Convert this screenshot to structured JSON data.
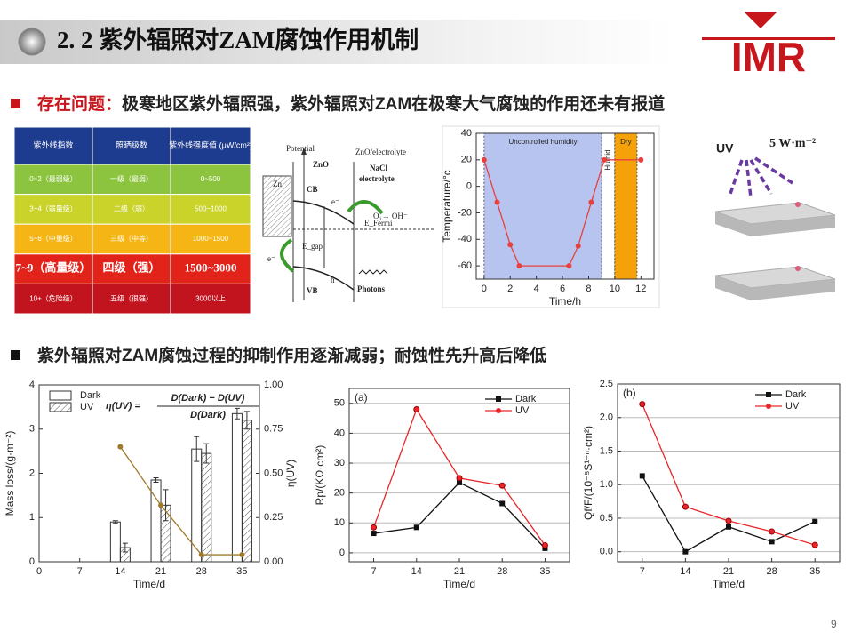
{
  "header": {
    "title": "2. 2 紫外辐照对ZAM腐蚀作用机制",
    "logo": "IMR",
    "page_number": "9"
  },
  "bullets": [
    {
      "label": "存在问题：",
      "text": "极寒地区紫外辐照强，紫外辐照对ZAM在极寒大气腐蚀的作用还未有报道"
    },
    {
      "text": "紫外辐照对ZAM腐蚀过程的抑制作用逐渐减弱；耐蚀性先升高后降低"
    }
  ],
  "table": {
    "header": [
      "紫外线指数",
      "照晒级数",
      "紫外线强度值 (μW/cm²)"
    ],
    "rows": [
      [
        "0~2（最弱级）",
        "一级（最弱）",
        "0~500"
      ],
      [
        "3~4（弱量级）",
        "二级（弱）",
        "500~1000"
      ],
      [
        "5~6（中量级）",
        "三级（中等）",
        "1000~1500"
      ],
      [
        "7~9（高量级）",
        "四级（强）",
        "1500~3000"
      ],
      [
        "10+（危险级）",
        "五级（很强）",
        "3000以上"
      ]
    ],
    "header_color": "#1e3c8f",
    "row_colors": [
      "#8cc43f",
      "#c9d32a",
      "#f5b615",
      "#e2231a",
      "#c1141e"
    ],
    "highlight_row": 3
  },
  "diagram": {
    "potential": "Potential",
    "zno": "ZnO",
    "interface": "ZnO/electrolyte",
    "electrolyte_1": "NaCl",
    "electrolyte_2": "electrolyte",
    "zn": "Zn",
    "cb": "CB",
    "vb": "VB",
    "e1": "e⁻",
    "e2": "e⁻",
    "hole": "h",
    "reaction": "O₂→ OH⁻",
    "fermi": "E_Fermi",
    "gap": "E_gap",
    "photons": "Photons"
  },
  "uv": {
    "label": "UV",
    "intensity": "5 W·m⁻²"
  },
  "chart_data": [
    {
      "type": "line",
      "x": [
        0,
        1,
        2,
        2.7,
        6.5,
        7.2,
        8.2,
        9.2,
        12
      ],
      "values": [
        20,
        -12,
        -44,
        -60,
        -60,
        -45,
        -12,
        20,
        20
      ],
      "color": "#e8403e",
      "xlim": [
        -0.6,
        13
      ],
      "ylim": [
        -70,
        40
      ],
      "xticks": [
        0,
        2,
        4,
        6,
        8,
        10,
        12
      ],
      "yticks": [
        -60,
        -40,
        -20,
        0,
        20,
        40
      ],
      "xlabel": "Time/h",
      "ylabel": "Temperature/°c",
      "grid": false,
      "regions": [
        {
          "label": "Uncontrolled humidity",
          "from": 0,
          "to": 9,
          "color": "#b7c4ef"
        },
        {
          "label": "Humid",
          "from": 9,
          "to": 10,
          "color": "#ffffff"
        },
        {
          "label": "Dry",
          "from": 10,
          "to": 11.7,
          "color": "#f5a20a"
        }
      ]
    },
    {
      "type": "bar",
      "x": [
        14,
        21,
        28,
        35
      ],
      "xlim": [
        0,
        38
      ],
      "ylim": [
        0,
        4
      ],
      "y2lim": [
        0,
        1
      ],
      "xticks": [
        0,
        7,
        14,
        21,
        28,
        35
      ],
      "yticks": [
        0,
        1,
        2,
        3,
        4
      ],
      "y2ticks": [
        {
          "value": 0,
          "label": "0.00"
        },
        {
          "value": 0.25,
          "label": "0.25"
        },
        {
          "value": 0.5,
          "label": "0.50"
        },
        {
          "value": 0.75,
          "label": "0.75"
        },
        {
          "value": 1,
          "label": "1.00"
        }
      ],
      "xlabel": "Time/d",
      "ylabel": "Mass loss/(g·m⁻²)",
      "y2label": "η(UV)",
      "legend": "upper-left",
      "grid": false,
      "series": [
        {
          "name": "Dark",
          "color": "#ffffff",
          "values": [
            0.9,
            1.85,
            2.55,
            3.35
          ],
          "errors": [
            0.03,
            0.05,
            0.28,
            0.12
          ]
        },
        {
          "name": "UV",
          "color": "#ffffff",
          "hatch": true,
          "values": [
            0.32,
            1.28,
            2.45,
            3.2
          ],
          "errors": [
            0.1,
            0.35,
            0.22,
            0.2
          ]
        },
        {
          "color": "#a07a2c",
          "axis": "y2",
          "values": [
            0.65,
            0.32,
            0.04,
            0.04
          ]
        }
      ],
      "annotation": {
        "lhs": "η(UV) =",
        "numerator": "D(Dark) − D(UV)",
        "denominator": "D(Dark)"
      }
    },
    {
      "type": "line",
      "label": "(a)",
      "x": [
        7,
        14,
        21,
        28,
        35
      ],
      "xlim": [
        3,
        39
      ],
      "ylim": [
        -3,
        55
      ],
      "xticks": [
        7,
        14,
        21,
        28,
        35
      ],
      "yticks": [
        0,
        10,
        20,
        30,
        40,
        50
      ],
      "xlabel": "Time/d",
      "ylabel": "Rp/(KΩ·cm²)",
      "legend": "upper-right",
      "grid": true,
      "series": [
        {
          "name": "Dark",
          "color": "#111111",
          "marker": "square",
          "values": [
            6.5,
            8.5,
            23.5,
            16.5,
            1.5
          ]
        },
        {
          "name": "UV",
          "color": "#e8262b",
          "marker": "circle",
          "values": [
            8.5,
            48,
            25,
            22.5,
            2.5
          ]
        }
      ]
    },
    {
      "type": "line",
      "label": "(b)",
      "x": [
        7,
        14,
        21,
        28,
        35
      ],
      "xlim": [
        3,
        39
      ],
      "ylim": [
        -0.15,
        2.5
      ],
      "xticks": [
        7,
        14,
        21,
        28,
        35
      ],
      "yticks": [
        {
          "value": 0,
          "label": "0.0"
        },
        0.5,
        {
          "value": 1,
          "label": "1.0"
        },
        1.5,
        {
          "value": 2,
          "label": "2.0"
        },
        2.5
      ],
      "xlabel": "Time/d",
      "ylabel": "Qf/F/(10⁻⁵S¹⁻ⁿ·cm²)",
      "legend": "upper-right",
      "grid": true,
      "series": [
        {
          "name": "Dark",
          "color": "#111111",
          "marker": "square",
          "values": [
            1.13,
            0.0,
            0.37,
            0.15,
            0.45
          ]
        },
        {
          "name": "UV",
          "color": "#e8262b",
          "marker": "circle",
          "values": [
            2.2,
            0.67,
            0.46,
            0.3,
            0.1
          ]
        }
      ]
    }
  ]
}
